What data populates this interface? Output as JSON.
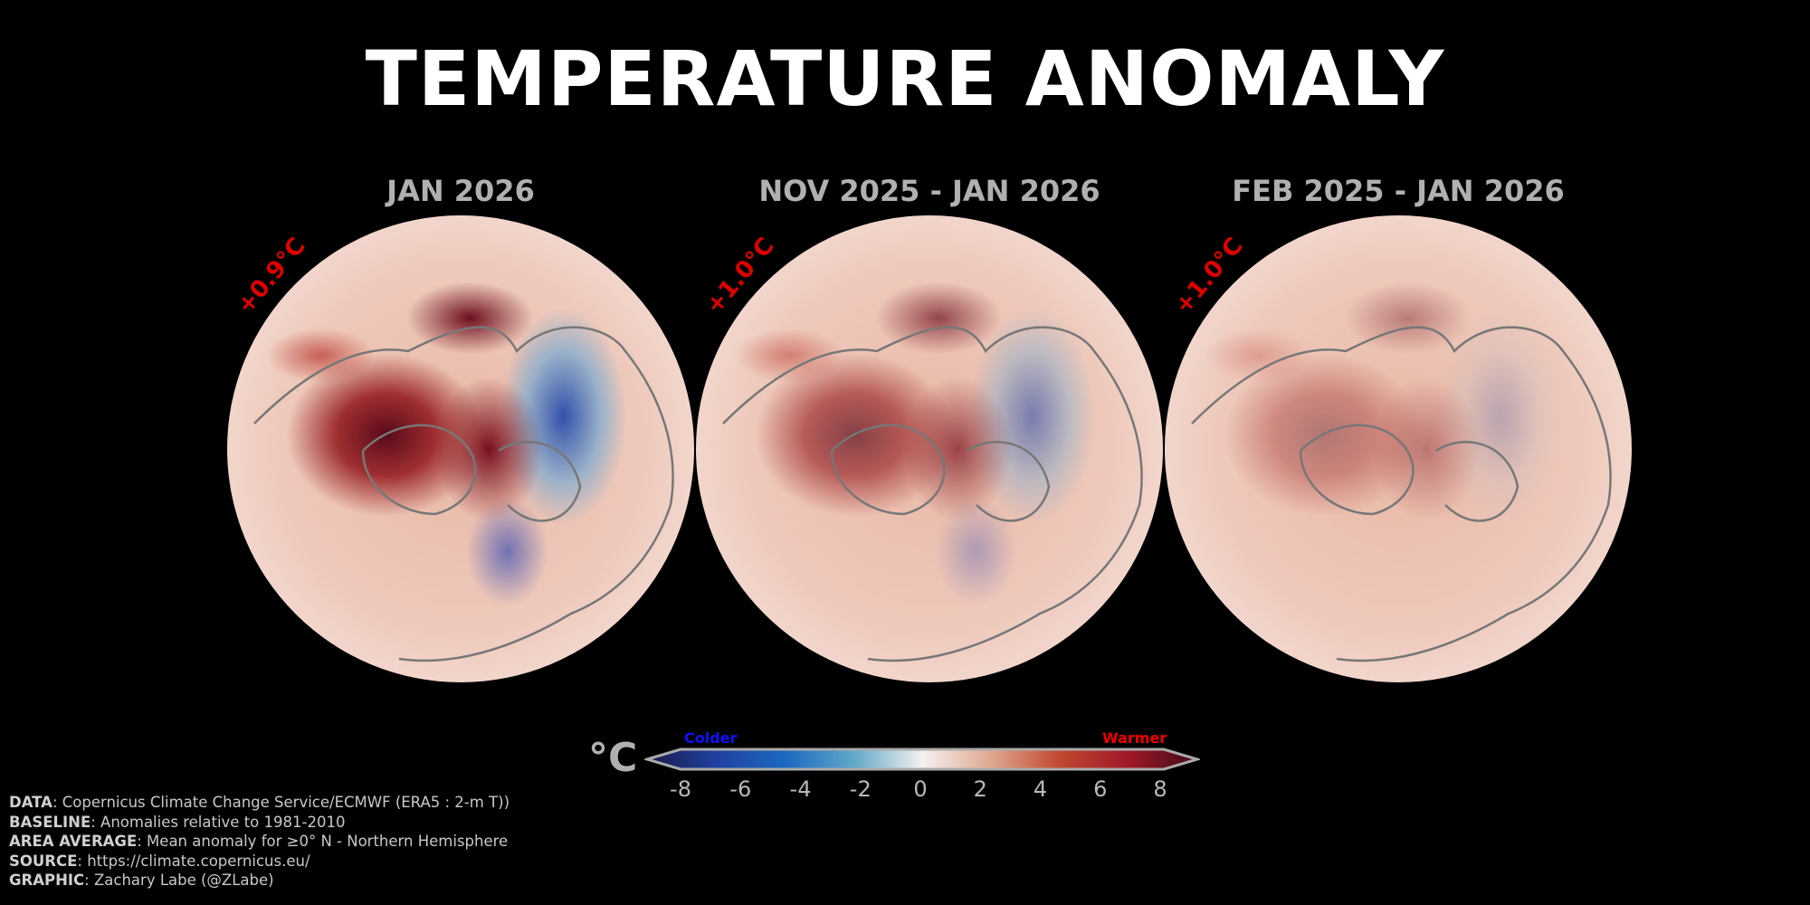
{
  "chart_data": {
    "type": "heatmap",
    "title": "TEMPERATURE ANOMALY",
    "panels": [
      {
        "subtitle": "JAN 2026",
        "area_average": "+0.9°C",
        "intensity": 1.0
      },
      {
        "subtitle": "NOV 2025 - JAN 2026",
        "area_average": "+1.0°C",
        "intensity": 0.7
      },
      {
        "subtitle": "FEB 2025 - JAN 2026",
        "area_average": "+1.0°C",
        "intensity": 0.4
      }
    ],
    "colorbar": {
      "unit": "°C",
      "ticks": [
        "-8",
        "-6",
        "-4",
        "-2",
        "0",
        "2",
        "4",
        "6",
        "8"
      ],
      "range": [
        -8,
        8
      ],
      "low_label": "Colder",
      "high_label": "Warmer",
      "colors": [
        "#1a1a4a",
        "#2040a0",
        "#1c68c0",
        "#60a8c8",
        "#f4f0f0",
        "#e0a890",
        "#c04830",
        "#a01828",
        "#400c18"
      ]
    }
  },
  "footer": [
    {
      "key": "DATA",
      "text": ": Copernicus Climate Change Service/ECMWF (ERA5 : 2-m T))"
    },
    {
      "key": "BASELINE",
      "text": ": Anomalies relative to 1981-2010"
    },
    {
      "key": "AREA AVERAGE",
      "text": ": Mean anomaly for ≥0° N - Northern Hemisphere"
    },
    {
      "key": "SOURCE",
      "text": ": https://climate.copernicus.eu/"
    },
    {
      "key": "GRAPHIC",
      "text": ": Zachary Labe (@ZLabe)"
    }
  ]
}
